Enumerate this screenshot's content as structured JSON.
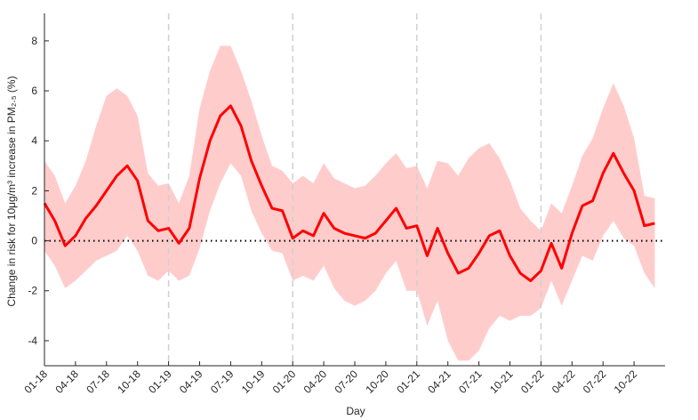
{
  "chart_data": {
    "type": "line",
    "x_label": "Day",
    "y_label": "Change in risk for 10μg/m³ increase in PM₂.₅ (%)",
    "categories": [
      "01-18",
      null,
      null,
      "04-18",
      null,
      null,
      "07-18",
      null,
      null,
      "10-18",
      null,
      null,
      "01-19",
      null,
      null,
      "04-19",
      null,
      null,
      "07-19",
      null,
      null,
      "10-19",
      null,
      null,
      "01-20",
      null,
      null,
      "04-20",
      null,
      null,
      "07-20",
      null,
      null,
      "10-20",
      null,
      null,
      "01-21",
      null,
      null,
      "04-21",
      null,
      null,
      "07-21",
      null,
      null,
      "10-21",
      null,
      null,
      "01-22",
      null,
      null,
      "04-22",
      null,
      null,
      "07-22",
      null,
      null,
      "10-22",
      null,
      null
    ],
    "values": [
      1.5,
      0.8,
      -0.2,
      0.2,
      0.9,
      1.4,
      2.0,
      2.6,
      3.0,
      2.4,
      0.8,
      0.4,
      0.5,
      -0.1,
      0.5,
      2.5,
      4.0,
      5.0,
      5.4,
      4.6,
      3.2,
      2.2,
      1.3,
      1.2,
      0.1,
      0.4,
      0.2,
      1.1,
      0.5,
      0.3,
      0.2,
      0.1,
      0.3,
      0.8,
      1.3,
      0.5,
      0.6,
      -0.6,
      0.5,
      -0.5,
      -1.3,
      -1.1,
      -0.5,
      0.2,
      0.4,
      -0.6,
      -1.3,
      -1.6,
      -1.2,
      -0.1,
      -1.1,
      0.3,
      1.4,
      1.6,
      2.7,
      3.5,
      2.7,
      2.0,
      0.6,
      0.7
    ],
    "upper": [
      3.2,
      2.6,
      1.5,
      2.2,
      3.2,
      4.6,
      5.8,
      6.1,
      5.8,
      5.0,
      2.7,
      2.2,
      2.3,
      1.5,
      2.6,
      5.3,
      6.8,
      7.8,
      7.8,
      6.8,
      5.6,
      4.2,
      3.0,
      2.8,
      2.3,
      2.6,
      2.3,
      3.1,
      2.5,
      2.3,
      2.1,
      2.2,
      2.6,
      3.1,
      3.5,
      2.9,
      3.0,
      2.1,
      3.2,
      3.1,
      2.6,
      3.3,
      3.7,
      3.9,
      3.3,
      2.4,
      1.3,
      0.8,
      0.4,
      1.5,
      1.1,
      2.2,
      3.4,
      4.1,
      5.3,
      6.3,
      5.4,
      4.1,
      1.8,
      1.7
    ],
    "lower": [
      -0.4,
      -1.0,
      -1.9,
      -1.6,
      -1.2,
      -0.8,
      -0.6,
      -0.4,
      0.2,
      -0.4,
      -1.4,
      -1.6,
      -1.2,
      -1.6,
      -1.4,
      -0.3,
      1.2,
      2.3,
      3.1,
      2.6,
      1.2,
      0.3,
      -0.4,
      -0.5,
      -1.6,
      -1.4,
      -1.6,
      -1.0,
      -1.9,
      -2.4,
      -2.6,
      -2.4,
      -2.0,
      -1.3,
      -0.8,
      -2.0,
      -2.0,
      -3.4,
      -2.4,
      -4.0,
      -4.8,
      -4.8,
      -4.4,
      -3.5,
      -3.0,
      -3.2,
      -3.0,
      -3.0,
      -2.7,
      -1.6,
      -2.6,
      -1.6,
      -0.6,
      -0.8,
      0.2,
      0.8,
      0.1,
      -0.2,
      -1.3,
      -1.9
    ],
    "color": "#ff0000",
    "band_color": "#ffcccc",
    "reference_line": 0,
    "ylim": [
      -5,
      9.1
    ],
    "yticks": [
      -4,
      -2,
      0,
      2,
      4,
      6,
      8
    ]
  }
}
